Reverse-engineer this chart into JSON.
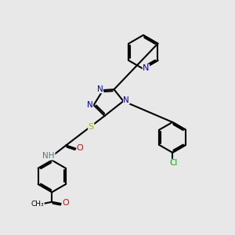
{
  "bg_color": "#e8e8e8",
  "bond_color": "#000000",
  "bond_width": 1.5,
  "atom_colors": {
    "N": "#0000cc",
    "O": "#ff0000",
    "S": "#aaaa00",
    "Cl": "#00aa00",
    "H": "#557777"
  },
  "figsize": [
    3.0,
    3.0
  ],
  "dpi": 100
}
